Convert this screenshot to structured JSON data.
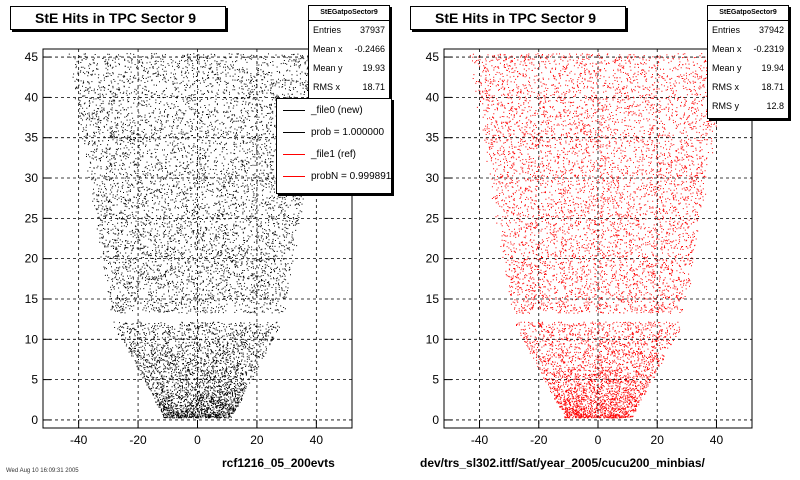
{
  "chart_data": [
    {
      "type": "scatter",
      "title": "StE Hits in TPC Sector 9",
      "xlim": [
        -52,
        52
      ],
      "ylim": [
        -1,
        46
      ],
      "xticks": [
        -40,
        -20,
        0,
        20,
        40
      ],
      "yticks": [
        0,
        5,
        10,
        15,
        20,
        25,
        30,
        35,
        40,
        45
      ],
      "grid": true,
      "color": "#000000",
      "stats": {
        "name": "StEGatpoSector9",
        "rows": [
          {
            "label": "Entries",
            "value": "37937"
          },
          {
            "label": "Mean x",
            "value": "-0.2466"
          },
          {
            "label": "Mean y",
            "value": "19.93"
          },
          {
            "label": "RMS x",
            "value": "18.71"
          }
        ]
      },
      "legend": {
        "placement": "top-right",
        "entries": [
          {
            "label": "_file0 (new)",
            "color": "#000000"
          },
          {
            "label": "prob = 1.000000",
            "color": "#000000"
          },
          {
            "label": "_file1 (ref)",
            "color": "#ff0000"
          },
          {
            "label": "probN = 0.999891",
            "color": "#ff0000"
          }
        ]
      },
      "footer": "rcf1216_05_200evts"
    },
    {
      "type": "scatter",
      "title": "StE Hits in TPC Sector 9",
      "xlim": [
        -52,
        52
      ],
      "ylim": [
        -1,
        46
      ],
      "xticks": [
        -40,
        -20,
        0,
        20,
        40
      ],
      "yticks": [
        0,
        5,
        10,
        15,
        20,
        25,
        30,
        35,
        40,
        45
      ],
      "grid": true,
      "color": "#ff0000",
      "stats": {
        "name": "StEGatpoSector9",
        "rows": [
          {
            "label": "Entries",
            "value": "37942"
          },
          {
            "label": "Mean x",
            "value": "-0.2319"
          },
          {
            "label": "Mean y",
            "value": "19.94"
          },
          {
            "label": "RMS x",
            "value": "18.71"
          },
          {
            "label": "RMS y",
            "value": "12.8"
          }
        ]
      },
      "footer": "dev/trs_sl302.ittf/Sat/year_2005/cucu200_minbias/"
    }
  ],
  "page": {
    "corner_note": "Wed Aug 10 16:09:31 2005"
  }
}
